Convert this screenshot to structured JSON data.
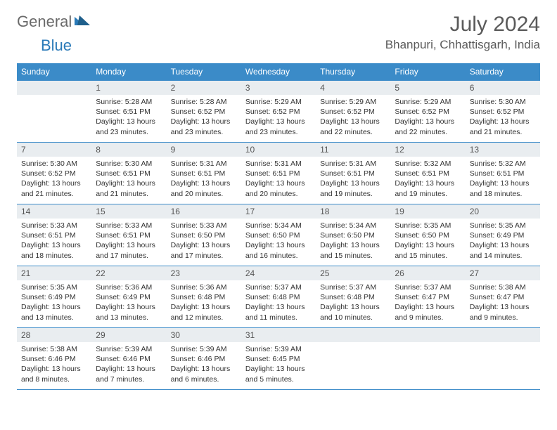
{
  "logo": {
    "general": "General",
    "blue": "Blue"
  },
  "month_title": "July 2024",
  "location": "Bhanpuri, Chhattisgarh, India",
  "colors": {
    "header_bg": "#3b8bc8",
    "header_text": "#ffffff",
    "daynum_bg": "#e9edf0",
    "rule": "#3b8bc8",
    "logo_gray": "#6a6a6a",
    "logo_blue": "#2a7ab8"
  },
  "day_headers": [
    "Sunday",
    "Monday",
    "Tuesday",
    "Wednesday",
    "Thursday",
    "Friday",
    "Saturday"
  ],
  "weeks": [
    [
      {
        "n": "",
        "sunrise": "",
        "sunset": "",
        "daylight": ""
      },
      {
        "n": "1",
        "sunrise": "Sunrise: 5:28 AM",
        "sunset": "Sunset: 6:51 PM",
        "daylight": "Daylight: 13 hours and 23 minutes."
      },
      {
        "n": "2",
        "sunrise": "Sunrise: 5:28 AM",
        "sunset": "Sunset: 6:52 PM",
        "daylight": "Daylight: 13 hours and 23 minutes."
      },
      {
        "n": "3",
        "sunrise": "Sunrise: 5:29 AM",
        "sunset": "Sunset: 6:52 PM",
        "daylight": "Daylight: 13 hours and 23 minutes."
      },
      {
        "n": "4",
        "sunrise": "Sunrise: 5:29 AM",
        "sunset": "Sunset: 6:52 PM",
        "daylight": "Daylight: 13 hours and 22 minutes."
      },
      {
        "n": "5",
        "sunrise": "Sunrise: 5:29 AM",
        "sunset": "Sunset: 6:52 PM",
        "daylight": "Daylight: 13 hours and 22 minutes."
      },
      {
        "n": "6",
        "sunrise": "Sunrise: 5:30 AM",
        "sunset": "Sunset: 6:52 PM",
        "daylight": "Daylight: 13 hours and 21 minutes."
      }
    ],
    [
      {
        "n": "7",
        "sunrise": "Sunrise: 5:30 AM",
        "sunset": "Sunset: 6:52 PM",
        "daylight": "Daylight: 13 hours and 21 minutes."
      },
      {
        "n": "8",
        "sunrise": "Sunrise: 5:30 AM",
        "sunset": "Sunset: 6:51 PM",
        "daylight": "Daylight: 13 hours and 21 minutes."
      },
      {
        "n": "9",
        "sunrise": "Sunrise: 5:31 AM",
        "sunset": "Sunset: 6:51 PM",
        "daylight": "Daylight: 13 hours and 20 minutes."
      },
      {
        "n": "10",
        "sunrise": "Sunrise: 5:31 AM",
        "sunset": "Sunset: 6:51 PM",
        "daylight": "Daylight: 13 hours and 20 minutes."
      },
      {
        "n": "11",
        "sunrise": "Sunrise: 5:31 AM",
        "sunset": "Sunset: 6:51 PM",
        "daylight": "Daylight: 13 hours and 19 minutes."
      },
      {
        "n": "12",
        "sunrise": "Sunrise: 5:32 AM",
        "sunset": "Sunset: 6:51 PM",
        "daylight": "Daylight: 13 hours and 19 minutes."
      },
      {
        "n": "13",
        "sunrise": "Sunrise: 5:32 AM",
        "sunset": "Sunset: 6:51 PM",
        "daylight": "Daylight: 13 hours and 18 minutes."
      }
    ],
    [
      {
        "n": "14",
        "sunrise": "Sunrise: 5:33 AM",
        "sunset": "Sunset: 6:51 PM",
        "daylight": "Daylight: 13 hours and 18 minutes."
      },
      {
        "n": "15",
        "sunrise": "Sunrise: 5:33 AM",
        "sunset": "Sunset: 6:51 PM",
        "daylight": "Daylight: 13 hours and 17 minutes."
      },
      {
        "n": "16",
        "sunrise": "Sunrise: 5:33 AM",
        "sunset": "Sunset: 6:50 PM",
        "daylight": "Daylight: 13 hours and 17 minutes."
      },
      {
        "n": "17",
        "sunrise": "Sunrise: 5:34 AM",
        "sunset": "Sunset: 6:50 PM",
        "daylight": "Daylight: 13 hours and 16 minutes."
      },
      {
        "n": "18",
        "sunrise": "Sunrise: 5:34 AM",
        "sunset": "Sunset: 6:50 PM",
        "daylight": "Daylight: 13 hours and 15 minutes."
      },
      {
        "n": "19",
        "sunrise": "Sunrise: 5:35 AM",
        "sunset": "Sunset: 6:50 PM",
        "daylight": "Daylight: 13 hours and 15 minutes."
      },
      {
        "n": "20",
        "sunrise": "Sunrise: 5:35 AM",
        "sunset": "Sunset: 6:49 PM",
        "daylight": "Daylight: 13 hours and 14 minutes."
      }
    ],
    [
      {
        "n": "21",
        "sunrise": "Sunrise: 5:35 AM",
        "sunset": "Sunset: 6:49 PM",
        "daylight": "Daylight: 13 hours and 13 minutes."
      },
      {
        "n": "22",
        "sunrise": "Sunrise: 5:36 AM",
        "sunset": "Sunset: 6:49 PM",
        "daylight": "Daylight: 13 hours and 13 minutes."
      },
      {
        "n": "23",
        "sunrise": "Sunrise: 5:36 AM",
        "sunset": "Sunset: 6:48 PM",
        "daylight": "Daylight: 13 hours and 12 minutes."
      },
      {
        "n": "24",
        "sunrise": "Sunrise: 5:37 AM",
        "sunset": "Sunset: 6:48 PM",
        "daylight": "Daylight: 13 hours and 11 minutes."
      },
      {
        "n": "25",
        "sunrise": "Sunrise: 5:37 AM",
        "sunset": "Sunset: 6:48 PM",
        "daylight": "Daylight: 13 hours and 10 minutes."
      },
      {
        "n": "26",
        "sunrise": "Sunrise: 5:37 AM",
        "sunset": "Sunset: 6:47 PM",
        "daylight": "Daylight: 13 hours and 9 minutes."
      },
      {
        "n": "27",
        "sunrise": "Sunrise: 5:38 AM",
        "sunset": "Sunset: 6:47 PM",
        "daylight": "Daylight: 13 hours and 9 minutes."
      }
    ],
    [
      {
        "n": "28",
        "sunrise": "Sunrise: 5:38 AM",
        "sunset": "Sunset: 6:46 PM",
        "daylight": "Daylight: 13 hours and 8 minutes."
      },
      {
        "n": "29",
        "sunrise": "Sunrise: 5:39 AM",
        "sunset": "Sunset: 6:46 PM",
        "daylight": "Daylight: 13 hours and 7 minutes."
      },
      {
        "n": "30",
        "sunrise": "Sunrise: 5:39 AM",
        "sunset": "Sunset: 6:46 PM",
        "daylight": "Daylight: 13 hours and 6 minutes."
      },
      {
        "n": "31",
        "sunrise": "Sunrise: 5:39 AM",
        "sunset": "Sunset: 6:45 PM",
        "daylight": "Daylight: 13 hours and 5 minutes."
      },
      {
        "n": "",
        "sunrise": "",
        "sunset": "",
        "daylight": ""
      },
      {
        "n": "",
        "sunrise": "",
        "sunset": "",
        "daylight": ""
      },
      {
        "n": "",
        "sunrise": "",
        "sunset": "",
        "daylight": ""
      }
    ]
  ]
}
